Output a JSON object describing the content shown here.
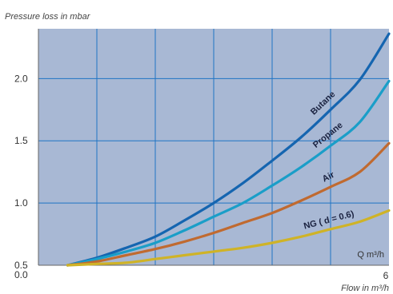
{
  "chart_data": {
    "type": "line",
    "title": "",
    "ylabel": "Pressure loss in mbar",
    "xlabel": "Flow in m³/h",
    "x_axis_unit_label": "Q m³/h",
    "x_tick_labels": [
      "6"
    ],
    "y_tick_labels": [
      "0.0",
      "0.5",
      "1.0",
      "1.5",
      "2.0"
    ],
    "xlim": [
      0,
      6
    ],
    "ylim": [
      0.5,
      2.4
    ],
    "grid": true,
    "colors": {
      "plot_background": "#a8b8d4",
      "grid": "#1f74c4",
      "axis": "#555555"
    },
    "x": [
      0.5,
      1.0,
      1.5,
      2.0,
      2.5,
      3.0,
      3.5,
      4.0,
      4.5,
      5.0,
      5.5,
      6.0
    ],
    "series": [
      {
        "name": "Butane",
        "color": "#1565b0",
        "values": [
          0.5,
          0.56,
          0.64,
          0.73,
          0.86,
          1.0,
          1.16,
          1.34,
          1.53,
          1.75,
          1.99,
          2.36
        ]
      },
      {
        "name": "Propane",
        "color": "#1a9ec8",
        "values": [
          0.5,
          0.55,
          0.61,
          0.68,
          0.78,
          0.89,
          1.0,
          1.14,
          1.29,
          1.46,
          1.65,
          1.98
        ]
      },
      {
        "name": "Air",
        "color": "#c06a30",
        "values": [
          0.5,
          0.53,
          0.58,
          0.63,
          0.69,
          0.76,
          0.84,
          0.92,
          1.02,
          1.13,
          1.25,
          1.48
        ]
      },
      {
        "name": "NG ( d = 0.6)",
        "color": "#cfb327",
        "values": [
          0.5,
          0.51,
          0.52,
          0.55,
          0.58,
          0.61,
          0.64,
          0.68,
          0.73,
          0.79,
          0.85,
          0.94
        ]
      }
    ]
  }
}
